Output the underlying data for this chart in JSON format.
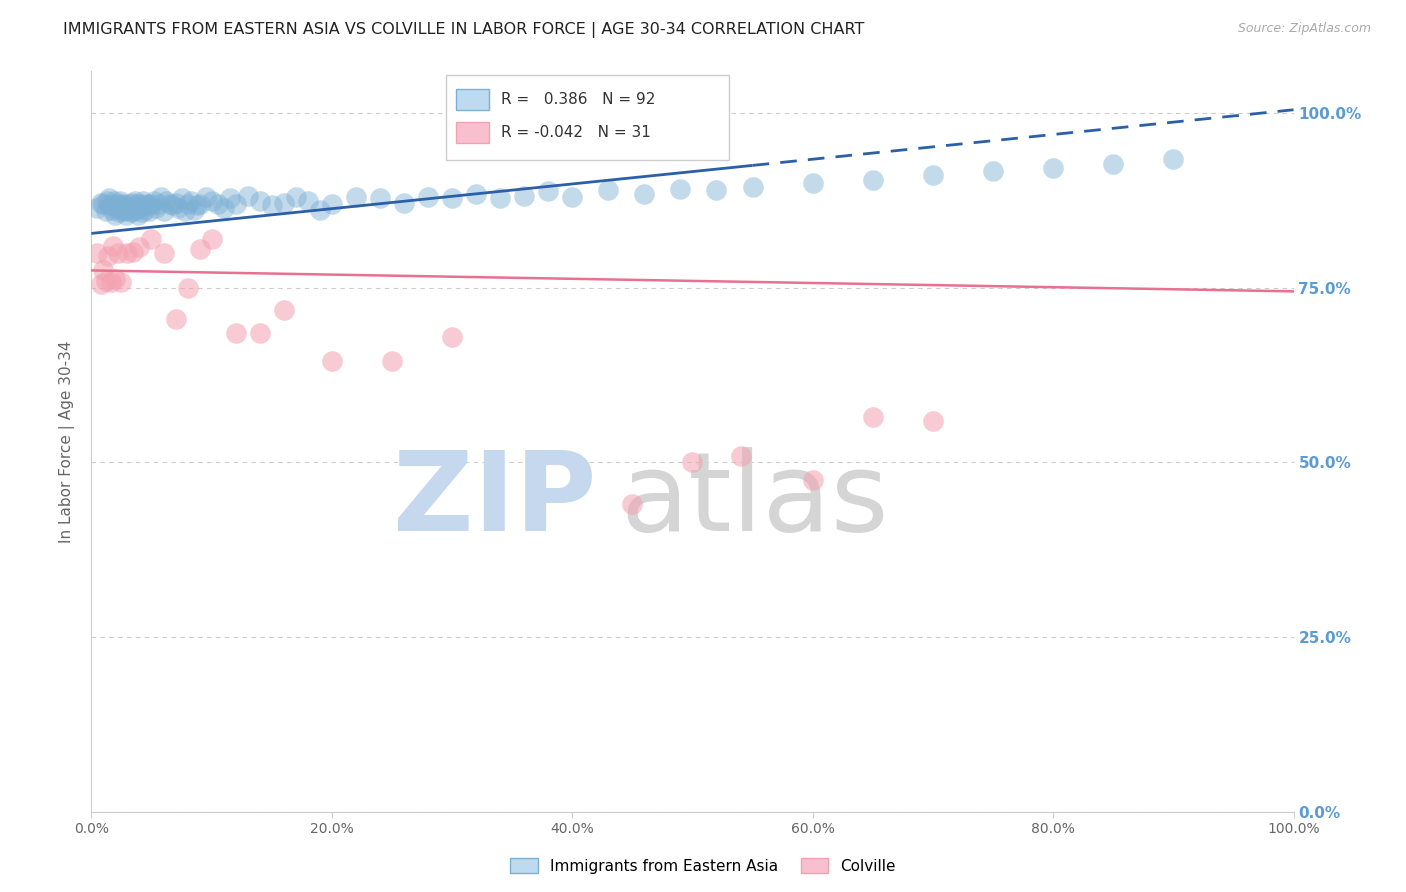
{
  "title": "IMMIGRANTS FROM EASTERN ASIA VS COLVILLE IN LABOR FORCE | AGE 30-34 CORRELATION CHART",
  "source_text": "Source: ZipAtlas.com",
  "ylabel": "In Labor Force | Age 30-34",
  "xlim": [
    0.0,
    1.0
  ],
  "ylim": [
    0.0,
    1.06
  ],
  "ytick_values": [
    0.0,
    0.25,
    0.5,
    0.75,
    1.0
  ],
  "ytick_labels": [
    "0.0%",
    "25.0%",
    "50.0%",
    "75.0%",
    "100.0%"
  ],
  "xtick_values": [
    0.0,
    0.2,
    0.4,
    0.6,
    0.8,
    1.0
  ],
  "xtick_labels": [
    "0.0%",
    "20.0%",
    "40.0%",
    "60.0%",
    "80.0%",
    "100.0%"
  ],
  "legend_blue_r": "0.386",
  "legend_blue_n": "92",
  "legend_pink_r": "-0.042",
  "legend_pink_n": "31",
  "legend_label_blue": "Immigrants from Eastern Asia",
  "legend_label_pink": "Colville",
  "blue_scatter_color": "#7BAFD4",
  "pink_scatter_color": "#F4A0B0",
  "blue_line_color": "#2B5FA8",
  "pink_line_color": "#E87090",
  "blue_line_solid_end": 0.55,
  "blue_trendline_y_start": 0.828,
  "blue_trendline_y_end": 1.005,
  "pink_trendline_y_start": 0.775,
  "pink_trendline_y_end": 0.745,
  "background_color": "#FFFFFF",
  "grid_color": "#CCCCCC",
  "title_color": "#333333",
  "axis_label_color": "#666666",
  "right_yaxis_color": "#5B9BD5",
  "watermark_zip_color": "#C5D8EE",
  "watermark_atlas_color": "#D5D5D5",
  "blue_scatter_x": [
    0.005,
    0.008,
    0.01,
    0.012,
    0.013,
    0.015,
    0.015,
    0.017,
    0.018,
    0.019,
    0.02,
    0.021,
    0.022,
    0.023,
    0.024,
    0.025,
    0.026,
    0.027,
    0.028,
    0.029,
    0.03,
    0.031,
    0.032,
    0.033,
    0.034,
    0.035,
    0.036,
    0.037,
    0.038,
    0.039,
    0.04,
    0.041,
    0.042,
    0.043,
    0.045,
    0.046,
    0.047,
    0.048,
    0.05,
    0.052,
    0.054,
    0.056,
    0.058,
    0.06,
    0.062,
    0.065,
    0.068,
    0.07,
    0.072,
    0.075,
    0.078,
    0.08,
    0.083,
    0.085,
    0.088,
    0.09,
    0.095,
    0.1,
    0.105,
    0.11,
    0.115,
    0.12,
    0.13,
    0.14,
    0.15,
    0.16,
    0.17,
    0.18,
    0.19,
    0.2,
    0.22,
    0.24,
    0.26,
    0.28,
    0.3,
    0.32,
    0.34,
    0.36,
    0.38,
    0.4,
    0.43,
    0.46,
    0.49,
    0.52,
    0.55,
    0.6,
    0.65,
    0.7,
    0.75,
    0.8,
    0.85,
    0.9
  ],
  "blue_scatter_y": [
    0.865,
    0.872,
    0.87,
    0.86,
    0.875,
    0.868,
    0.878,
    0.862,
    0.87,
    0.875,
    0.855,
    0.865,
    0.87,
    0.858,
    0.875,
    0.862,
    0.87,
    0.868,
    0.86,
    0.855,
    0.862,
    0.87,
    0.865,
    0.858,
    0.872,
    0.86,
    0.875,
    0.862,
    0.87,
    0.855,
    0.865,
    0.87,
    0.858,
    0.875,
    0.862,
    0.87,
    0.868,
    0.86,
    0.87,
    0.875,
    0.865,
    0.87,
    0.88,
    0.86,
    0.875,
    0.87,
    0.868,
    0.872,
    0.865,
    0.878,
    0.86,
    0.87,
    0.875,
    0.862,
    0.868,
    0.87,
    0.88,
    0.875,
    0.87,
    0.865,
    0.878,
    0.87,
    0.882,
    0.875,
    0.868,
    0.872,
    0.88,
    0.875,
    0.862,
    0.87,
    0.88,
    0.878,
    0.872,
    0.88,
    0.878,
    0.885,
    0.878,
    0.882,
    0.888,
    0.88,
    0.89,
    0.885,
    0.892,
    0.89,
    0.895,
    0.9,
    0.905,
    0.912,
    0.918,
    0.922,
    0.928,
    0.935
  ],
  "pink_scatter_x": [
    0.005,
    0.008,
    0.01,
    0.012,
    0.014,
    0.016,
    0.018,
    0.02,
    0.022,
    0.025,
    0.03,
    0.035,
    0.04,
    0.05,
    0.06,
    0.07,
    0.08,
    0.09,
    0.1,
    0.12,
    0.14,
    0.16,
    0.2,
    0.25,
    0.3,
    0.45,
    0.5,
    0.54,
    0.6,
    0.65,
    0.7
  ],
  "pink_scatter_y": [
    0.8,
    0.755,
    0.775,
    0.76,
    0.795,
    0.758,
    0.81,
    0.762,
    0.8,
    0.758,
    0.8,
    0.802,
    0.808,
    0.82,
    0.8,
    0.705,
    0.75,
    0.805,
    0.82,
    0.685,
    0.685,
    0.718,
    0.645,
    0.645,
    0.68,
    0.44,
    0.5,
    0.51,
    0.475,
    0.565,
    0.56
  ]
}
